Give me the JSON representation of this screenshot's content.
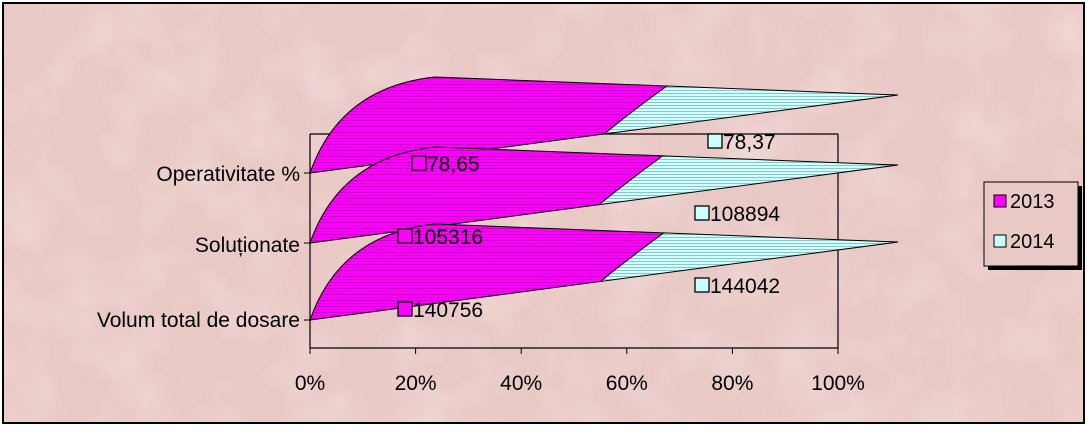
{
  "chart_data": {
    "type": "bar",
    "orientation": "horizontal",
    "stacking": "100%",
    "style": "3d-cone",
    "categories": [
      "Volum total de dosare",
      "Soluționate",
      "Operativitate %"
    ],
    "series": [
      {
        "name": "2013",
        "values": [
          140756,
          105316,
          78.65
        ],
        "labels": [
          "140756",
          "105316",
          "78,65"
        ],
        "color": "#ff00ff"
      },
      {
        "name": "2014",
        "values": [
          144042,
          108894,
          78.37
        ],
        "labels": [
          "144042",
          "108894",
          "78,37"
        ],
        "color": "#ccffff"
      }
    ],
    "xaxis": {
      "ticks": [
        "0%",
        "20%",
        "40%",
        "60%",
        "80%",
        "100%"
      ],
      "range": [
        0,
        100
      ]
    },
    "legend": {
      "position": "right"
    },
    "grid": false,
    "background": "#e9c9c6"
  }
}
